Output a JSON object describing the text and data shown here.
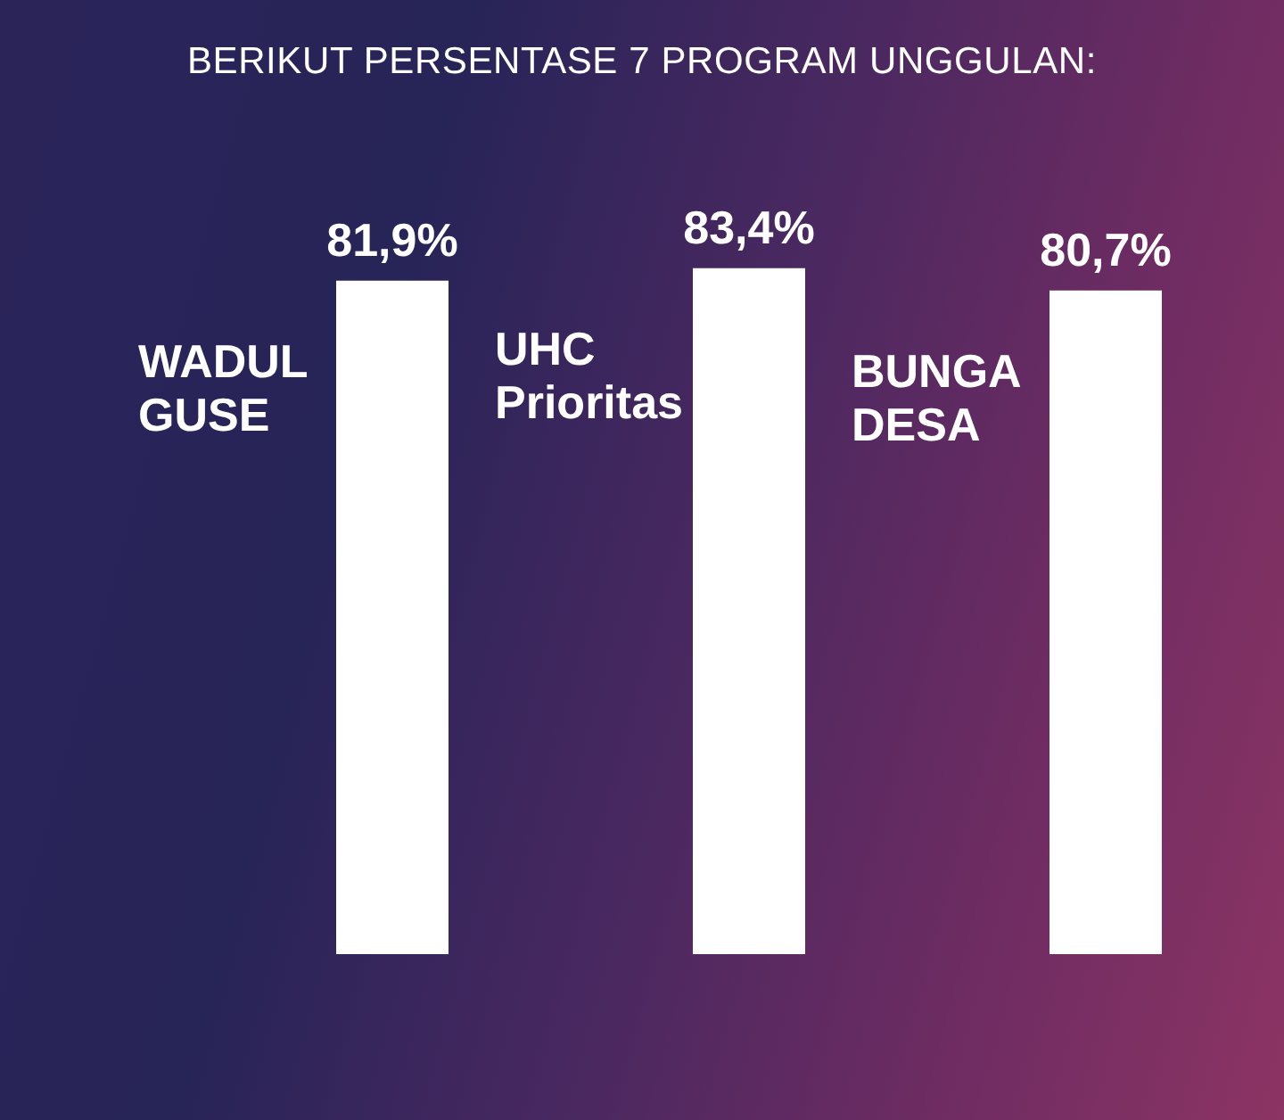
{
  "chart_data": {
    "type": "bar",
    "title": "BERIKUT PERSENTASE 7 PROGRAM UNGGULAN:",
    "categories": [
      "WADUL GUSE",
      "UHC Prioritas",
      "BUNGA DESA"
    ],
    "values": [
      81.9,
      83.4,
      80.7
    ],
    "color": "#ffffff",
    "value_labels": [
      "81,9%",
      "83,4%",
      "80,7%"
    ]
  }
}
